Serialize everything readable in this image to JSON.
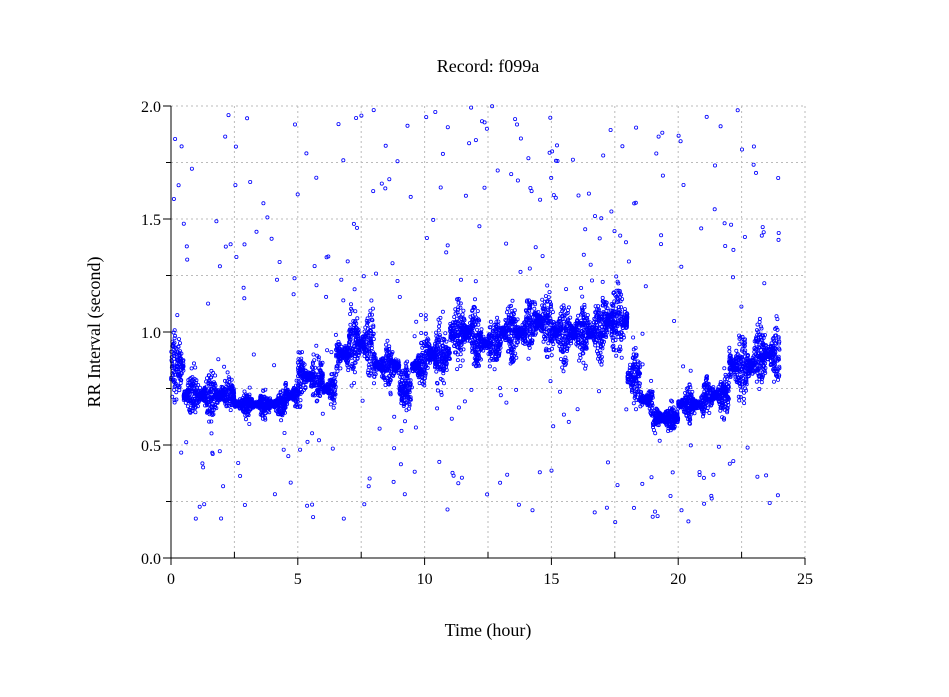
{
  "chart_data": {
    "type": "scatter",
    "title": "Record:  f099a",
    "xlabel": "Time (hour)",
    "ylabel": "RR Interval (second)",
    "xlim": [
      0,
      25
    ],
    "ylim": [
      0,
      2
    ],
    "x_ticks": [
      0,
      5,
      10,
      15,
      20,
      25
    ],
    "x_tick_labels": [
      "0",
      "5",
      "10",
      "15",
      "20",
      "25"
    ],
    "x_minor_ticks": [
      2.5,
      7.5,
      12.5,
      17.5,
      22.5
    ],
    "y_ticks": [
      0,
      0.5,
      1,
      1.5,
      2
    ],
    "y_tick_labels": [
      "0.0",
      "0.5",
      "1.0",
      "1.5",
      "2.0"
    ],
    "y_minor_ticks": [
      0.25,
      0.75,
      1.25,
      1.75
    ],
    "grid": true,
    "marker_color": "#0000ff",
    "series": [
      {
        "name": "RR interval",
        "description_of_points": "dense beat-by-beat RR interval estimates; per-segment centre and half-range in seconds",
        "segment_start_hour": [
          0,
          0.5,
          2,
          2.5,
          4.5,
          5,
          6,
          6.5,
          7,
          8,
          9,
          9.5,
          10,
          11,
          12,
          13,
          14,
          15,
          16,
          17,
          18,
          18.5,
          19,
          20,
          21,
          22,
          23
        ],
        "segment_end_hour": [
          0.5,
          2,
          2.5,
          4.5,
          5,
          6,
          6.5,
          7,
          8,
          9,
          9.5,
          10,
          11,
          12,
          13,
          14,
          15,
          16,
          17,
          18,
          18.5,
          19,
          20,
          21,
          22,
          23,
          24
        ],
        "center": [
          0.85,
          0.72,
          0.72,
          0.68,
          0.72,
          0.8,
          0.75,
          0.9,
          0.95,
          0.85,
          0.75,
          0.85,
          0.9,
          1.0,
          0.95,
          1.0,
          1.05,
          1.0,
          1.0,
          1.05,
          0.8,
          0.7,
          0.62,
          0.68,
          0.72,
          0.85,
          0.9
        ],
        "spread": [
          0.2,
          0.15,
          0.1,
          0.07,
          0.1,
          0.15,
          0.1,
          0.15,
          0.2,
          0.15,
          0.15,
          0.12,
          0.2,
          0.2,
          0.15,
          0.2,
          0.2,
          0.2,
          0.2,
          0.25,
          0.15,
          0.1,
          0.08,
          0.1,
          0.12,
          0.2,
          0.2
        ],
        "outlier_range": [
          0.15,
          2.0
        ]
      }
    ]
  }
}
